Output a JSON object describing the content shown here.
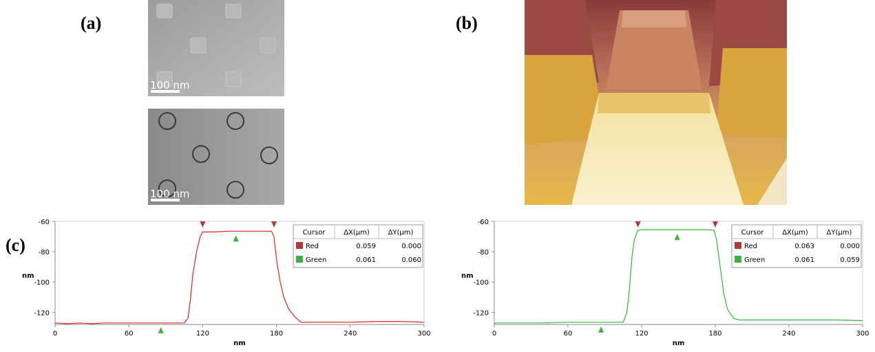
{
  "panel_labels": [
    "(a)",
    "(b)",
    "(c)"
  ],
  "scale_bar": "100 nm",
  "table_columns": [
    "Cursor",
    "ΔX(µm)",
    "ΔY(µm)"
  ],
  "chart_data": [
    {
      "type": "line",
      "xlabel": "nm",
      "ylabel": "nm",
      "color": "#e0211b",
      "x": [
        0,
        10,
        20,
        30,
        40,
        50,
        60,
        70,
        80,
        90,
        100,
        105,
        108,
        110,
        112,
        115,
        118,
        120,
        130,
        140,
        150,
        160,
        170,
        176,
        178,
        180,
        183,
        186,
        190,
        195,
        200,
        210,
        220,
        240,
        260,
        280,
        300
      ],
      "values": [
        -127,
        -127.5,
        -127,
        -127.5,
        -127,
        -127,
        -127,
        -127,
        -127,
        -127,
        -127,
        -127,
        -124,
        -112,
        -95,
        -80,
        -70,
        -67,
        -67,
        -66.5,
        -66.5,
        -66.5,
        -66.5,
        -66.5,
        -70,
        -85,
        -100,
        -110,
        -118,
        -123,
        -126.5,
        -126.5,
        -126.5,
        -126.5,
        -126,
        -126,
        -126.5
      ],
      "xlim": [
        0,
        300
      ],
      "xticks": [
        0,
        60,
        120,
        180,
        240,
        300
      ],
      "ylim": [
        -128,
        -60
      ],
      "yticks": [
        -60,
        -80,
        -100,
        -120
      ],
      "cursors": [
        {
          "name": "Red",
          "color": "#b03a3a",
          "dx": "0.059",
          "dy": "0.000",
          "x": [
            120,
            178
          ]
        },
        {
          "name": "Green",
          "color": "#3cb043",
          "dx": "0.061",
          "dy": "0.060",
          "x": [
            86,
            147
          ]
        }
      ]
    },
    {
      "type": "line",
      "xlabel": "nm",
      "ylabel": "nm",
      "color": "#2fb82f",
      "x": [
        0,
        20,
        40,
        60,
        80,
        100,
        105,
        108,
        110,
        112,
        114,
        117,
        120,
        140,
        160,
        175,
        179,
        181,
        184,
        187,
        190,
        195,
        200,
        220,
        240,
        260,
        280,
        300
      ],
      "values": [
        -127,
        -127,
        -127,
        -126.5,
        -126.5,
        -126.5,
        -126.5,
        -120,
        -105,
        -85,
        -72,
        -66,
        -65.5,
        -65.5,
        -65.5,
        -65.5,
        -66,
        -72,
        -90,
        -108,
        -118,
        -124,
        -125,
        -125,
        -125,
        -125,
        -125,
        -125.5
      ],
      "xlim": [
        0,
        300
      ],
      "xticks": [
        0,
        60,
        120,
        180,
        240,
        300
      ],
      "ylim": [
        -128,
        -60
      ],
      "yticks": [
        -60,
        -80,
        -100,
        -120
      ],
      "cursors": [
        {
          "name": "Red",
          "color": "#b03a3a",
          "dx": "0.063",
          "dy": "0.000",
          "x": [
            117,
            180
          ]
        },
        {
          "name": "Green",
          "color": "#3cb043",
          "dx": "0.061",
          "dy": "0.059",
          "x": [
            87,
            149
          ]
        }
      ]
    }
  ]
}
